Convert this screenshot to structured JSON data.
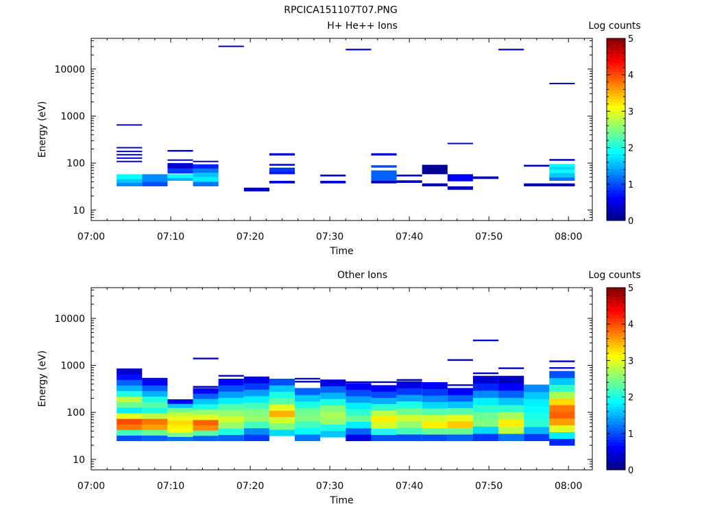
{
  "figure_title": "RPCICA151107T07.PNG",
  "chart_data": [
    {
      "type": "heatmap",
      "title": "H+ He++ Ions",
      "xlabel": "Time",
      "ylabel": "Energy (eV)",
      "y_scale": "log",
      "xlim": [
        "07:00",
        "08:03"
      ],
      "ylim": [
        6,
        45000
      ],
      "x_ticks": [
        "07:00",
        "07:10",
        "07:20",
        "07:30",
        "07:40",
        "07:50",
        "08:00"
      ],
      "y_ticks": [
        "10",
        "100",
        "1000",
        "10000"
      ],
      "colorbar": {
        "label": "Log counts",
        "range": [
          0,
          5
        ],
        "ticks": [
          "0",
          "1",
          "2",
          "3",
          "4",
          "5"
        ],
        "colormap": "jet"
      },
      "time_bins_start_min": [
        3.2,
        6.4,
        9.6,
        12.8,
        16.0,
        19.2,
        22.4,
        25.6,
        28.8,
        32.0,
        35.2,
        38.4,
        41.6,
        44.8,
        48.0,
        51.2,
        54.4,
        57.6
      ],
      "bin_width_min": 3.2,
      "cells": [
        {
          "t": 0,
          "e": [
            32,
            38
          ],
          "v": 1.3
        },
        {
          "t": 0,
          "e": [
            38,
            46
          ],
          "v": 1.6
        },
        {
          "t": 0,
          "e": [
            46,
            58
          ],
          "v": 1.9
        },
        {
          "t": 0,
          "e": [
            105,
            112
          ],
          "v": 0.4
        },
        {
          "t": 0,
          "e": [
            125,
            132
          ],
          "v": 0.4
        },
        {
          "t": 0,
          "e": [
            148,
            156
          ],
          "v": 0.4
        },
        {
          "t": 0,
          "e": [
            175,
            183
          ],
          "v": 0.4
        },
        {
          "t": 0,
          "e": [
            210,
            220
          ],
          "v": 0.4
        },
        {
          "t": 0,
          "e": [
            640,
            670
          ],
          "v": 0.4
        },
        {
          "t": 1,
          "e": [
            32,
            40
          ],
          "v": 1.0
        },
        {
          "t": 1,
          "e": [
            40,
            58
          ],
          "v": 1.3
        },
        {
          "t": 2,
          "e": [
            42,
            48
          ],
          "v": 1.5
        },
        {
          "t": 2,
          "e": [
            48,
            58
          ],
          "v": 1.9
        },
        {
          "t": 2,
          "e": [
            60,
            76
          ],
          "v": 0.9
        },
        {
          "t": 2,
          "e": [
            76,
            100
          ],
          "v": 0.4
        },
        {
          "t": 2,
          "e": [
            112,
            120
          ],
          "v": 0.4
        },
        {
          "t": 2,
          "e": [
            175,
            190
          ],
          "v": 0.3
        },
        {
          "t": 3,
          "e": [
            32,
            40
          ],
          "v": 1.2
        },
        {
          "t": 3,
          "e": [
            40,
            50
          ],
          "v": 1.8
        },
        {
          "t": 3,
          "e": [
            50,
            62
          ],
          "v": 1.6
        },
        {
          "t": 3,
          "e": [
            62,
            76
          ],
          "v": 1.2
        },
        {
          "t": 3,
          "e": [
            76,
            94
          ],
          "v": 0.8
        },
        {
          "t": 3,
          "e": [
            105,
            112
          ],
          "v": 0.4
        },
        {
          "t": 4,
          "e": [
            29500,
            31500
          ],
          "v": 0.3
        },
        {
          "t": 5,
          "e": [
            25,
            30
          ],
          "v": 0.3
        },
        {
          "t": 6,
          "e": [
            37,
            42
          ],
          "v": 0.4
        },
        {
          "t": 6,
          "e": [
            58,
            66
          ],
          "v": 0.7
        },
        {
          "t": 6,
          "e": [
            66,
            80
          ],
          "v": 0.9
        },
        {
          "t": 6,
          "e": [
            88,
            96
          ],
          "v": 0.5
        },
        {
          "t": 6,
          "e": [
            145,
            162
          ],
          "v": 0.4
        },
        {
          "t": 8,
          "e": [
            37,
            42
          ],
          "v": 0.4
        },
        {
          "t": 8,
          "e": [
            52,
            57
          ],
          "v": 0.4
        },
        {
          "t": 9,
          "e": [
            25000,
            27000
          ],
          "v": 0.3
        },
        {
          "t": 10,
          "e": [
            37,
            42
          ],
          "v": 0.3
        },
        {
          "t": 10,
          "e": [
            42,
            70
          ],
          "v": 1.1
        },
        {
          "t": 10,
          "e": [
            80,
            90
          ],
          "v": 1.0
        },
        {
          "t": 10,
          "e": [
            145,
            162
          ],
          "v": 0.4
        },
        {
          "t": 11,
          "e": [
            38,
            43
          ],
          "v": 0.3
        },
        {
          "t": 11,
          "e": [
            52,
            57
          ],
          "v": 0.4
        },
        {
          "t": 12,
          "e": [
            32,
            37
          ],
          "v": 0.3
        },
        {
          "t": 12,
          "e": [
            58,
            92
          ],
          "v": 0.1
        },
        {
          "t": 13,
          "e": [
            27,
            32
          ],
          "v": 0.3
        },
        {
          "t": 13,
          "e": [
            41,
            58
          ],
          "v": 0.6
        },
        {
          "t": 13,
          "e": [
            255,
            270
          ],
          "v": 0.4
        },
        {
          "t": 14,
          "e": [
            46,
            52
          ],
          "v": 0.3
        },
        {
          "t": 15,
          "e": [
            25000,
            27000
          ],
          "v": 0.3
        },
        {
          "t": 16,
          "e": [
            32,
            37
          ],
          "v": 0.3
        },
        {
          "t": 16,
          "e": [
            84,
            92
          ],
          "v": 0.3
        },
        {
          "t": 17,
          "e": [
            32,
            37
          ],
          "v": 0.3
        },
        {
          "t": 17,
          "e": [
            42,
            50
          ],
          "v": 1.2
        },
        {
          "t": 17,
          "e": [
            50,
            62
          ],
          "v": 1.6
        },
        {
          "t": 17,
          "e": [
            62,
            72
          ],
          "v": 1.9
        },
        {
          "t": 17,
          "e": [
            72,
            84
          ],
          "v": 1.7
        },
        {
          "t": 17,
          "e": [
            84,
            96
          ],
          "v": 1.9
        },
        {
          "t": 17,
          "e": [
            112,
            122
          ],
          "v": 0.4
        },
        {
          "t": 17,
          "e": [
            4800,
            5100
          ],
          "v": 0.3
        }
      ]
    },
    {
      "type": "heatmap",
      "title": "Other Ions",
      "xlabel": "Time",
      "ylabel": "Energy (eV)",
      "y_scale": "log",
      "xlim": [
        "07:00",
        "08:03"
      ],
      "ylim": [
        6,
        45000
      ],
      "x_ticks": [
        "07:00",
        "07:10",
        "07:20",
        "07:30",
        "07:40",
        "07:50",
        "08:00"
      ],
      "y_ticks": [
        "10",
        "100",
        "1000",
        "10000"
      ],
      "colorbar": {
        "label": "Log counts",
        "range": [
          0,
          5
        ],
        "ticks": [
          "0",
          "1",
          "2",
          "3",
          "4",
          "5"
        ],
        "colormap": "jet"
      },
      "time_bins_start_min": [
        3.2,
        6.4,
        9.6,
        12.8,
        16.0,
        19.2,
        22.4,
        25.6,
        28.8,
        32.0,
        35.2,
        38.4,
        41.6,
        44.8,
        48.0,
        51.2,
        54.4,
        57.6
      ],
      "bin_width_min": 3.2,
      "columns": [
        {
          "lo": 25,
          "hi": 860,
          "profile": [
            1.0,
            2.2,
            3.8,
            4.0,
            3.0,
            1.8,
            2.4,
            2.8,
            2.0,
            1.5,
            1.1,
            0.7,
            0.4
          ],
          "lines": []
        },
        {
          "lo": 25,
          "hi": 500,
          "profile": [
            1.1,
            2.4,
            3.6,
            3.8,
            2.8,
            2.0,
            2.3,
            2.0,
            1.5,
            1.1,
            0.6
          ],
          "lines": [
            520
          ]
        },
        {
          "lo": 25,
          "hi": 190,
          "profile": [
            1.2,
            2.5,
            3.1,
            3.2,
            3.3,
            3.0,
            2.8,
            2.4,
            1.6,
            0.6
          ],
          "lines": []
        },
        {
          "lo": 25,
          "hi": 330,
          "profile": [
            1.1,
            2.3,
            3.7,
            3.9,
            3.0,
            2.6,
            2.0,
            1.6,
            1.1,
            0.6
          ],
          "lines": [
            350,
            1400
          ]
        },
        {
          "lo": 25,
          "hi": 520,
          "profile": [
            1.1,
            2.0,
            2.6,
            2.9,
            2.6,
            2.3,
            1.8,
            1.4,
            1.0,
            0.6
          ],
          "lines": [
            600
          ]
        },
        {
          "lo": 25,
          "hi": 580,
          "profile": [
            0.9,
            1.3,
            2.2,
            2.6,
            2.5,
            2.2,
            1.8,
            1.4,
            0.9,
            0.5
          ],
          "lines": []
        },
        {
          "lo": 32,
          "hi": 520,
          "profile": [
            1.7,
            2.5,
            2.9,
            3.5,
            3.0,
            2.3,
            2.0,
            1.6,
            1.0
          ],
          "lines": []
        },
        {
          "lo": 25,
          "hi": 330,
          "profile": [
            1.2,
            1.9,
            2.2,
            2.5,
            2.4,
            2.0,
            1.6,
            1.1
          ],
          "lines": [
            450,
            520
          ]
        },
        {
          "lo": 30,
          "hi": 500,
          "profile": [
            1.6,
            2.0,
            2.6,
            2.7,
            2.5,
            2.0,
            1.5,
            1.1,
            0.5
          ],
          "lines": []
        },
        {
          "lo": 25,
          "hi": 420,
          "profile": [
            0.5,
            1.1,
            1.8,
            2.4,
            2.1,
            1.8,
            1.4,
            1.0,
            0.6
          ],
          "lines": [
            440
          ]
        },
        {
          "lo": 25,
          "hi": 380,
          "profile": [
            1.0,
            2.0,
            2.9,
            3.2,
            2.8,
            2.1,
            1.5,
            1.0,
            0.6
          ],
          "lines": [
            440
          ]
        },
        {
          "lo": 25,
          "hi": 460,
          "profile": [
            1.0,
            2.2,
            2.6,
            2.9,
            2.4,
            2.0,
            1.4,
            0.9,
            0.5
          ],
          "lines": [
            490
          ]
        },
        {
          "lo": 25,
          "hi": 440,
          "profile": [
            1.0,
            2.4,
            3.2,
            2.9,
            2.3,
            1.7,
            1.3,
            0.9,
            0.6
          ],
          "lines": []
        },
        {
          "lo": 25,
          "hi": 330,
          "profile": [
            1.1,
            2.4,
            3.4,
            3.0,
            2.3,
            1.6,
            1.1,
            0.6
          ],
          "lines": [
            380,
            1300
          ]
        },
        {
          "lo": 25,
          "hi": 600,
          "profile": [
            0.9,
            1.7,
            2.5,
            2.4,
            2.1,
            1.8,
            1.3,
            0.8,
            0.4
          ],
          "lines": [
            680,
            3400
          ]
        },
        {
          "lo": 25,
          "hi": 600,
          "profile": [
            1.2,
            2.8,
            3.2,
            2.7,
            2.1,
            1.6,
            1.1,
            0.6,
            0.3
          ],
          "lines": [
            870
          ]
        },
        {
          "lo": 25,
          "hi": 390,
          "profile": [
            0.9,
            1.5,
            2.1,
            2.0,
            1.9,
            1.8,
            1.6,
            1.3
          ],
          "lines": []
        },
        {
          "lo": 20,
          "hi": 760,
          "profile": [
            0.8,
            1.8,
            3.0,
            3.6,
            3.9,
            3.8,
            3.3,
            2.7,
            2.1,
            1.6,
            1.0
          ],
          "lines": [
            880,
            1220
          ]
        }
      ]
    }
  ]
}
